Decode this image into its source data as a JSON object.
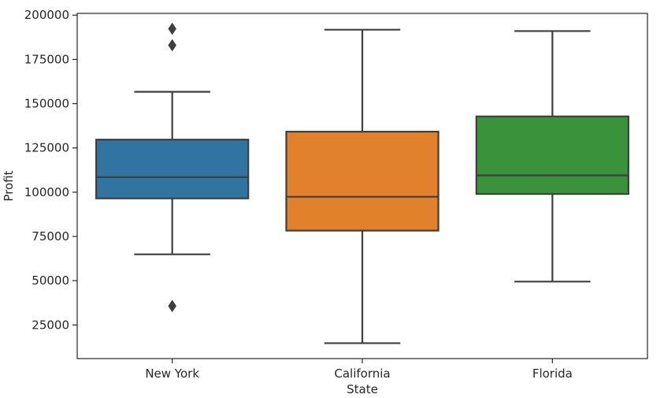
{
  "chart_data": {
    "type": "box",
    "title": "",
    "xlabel": "State",
    "ylabel": "Profit",
    "ylim": [
      6000,
      201000
    ],
    "yticks": [
      25000,
      50000,
      75000,
      100000,
      125000,
      150000,
      175000,
      200000
    ],
    "ytick_labels": [
      "25000",
      "50000",
      "75000",
      "100000",
      "125000",
      "150000",
      "175000",
      "200000"
    ],
    "grid": false,
    "legend": "none",
    "categories": [
      "New York",
      "California",
      "Florida"
    ],
    "boxes": [
      {
        "category": "New York",
        "color": "#3274a1",
        "whisker_low": 64900,
        "q1": 96500,
        "median": 108500,
        "q3": 129700,
        "whisker_high": 156700,
        "outliers": [
          192300,
          183000,
          35700
        ]
      },
      {
        "category": "California",
        "color": "#e1812c",
        "whisker_low": 14700,
        "q1": 78300,
        "median": 97400,
        "q3": 134200,
        "whisker_high": 191800,
        "outliers": []
      },
      {
        "category": "Florida",
        "color": "#3a923a",
        "whisker_low": 49500,
        "q1": 99000,
        "median": 109500,
        "q3": 142800,
        "whisker_high": 191000,
        "outliers": []
      }
    ],
    "line_color": "#3f3f3f"
  }
}
